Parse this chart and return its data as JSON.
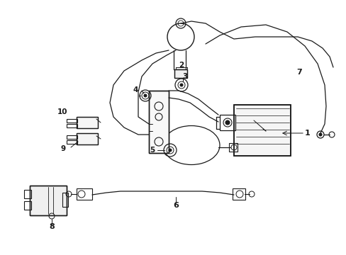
{
  "background_color": "#ffffff",
  "line_color": "#1a1a1a",
  "figsize": [
    4.89,
    3.6
  ],
  "dpi": 100,
  "lw_main": 0.9,
  "lw_thin": 0.6,
  "lw_thick": 1.2
}
